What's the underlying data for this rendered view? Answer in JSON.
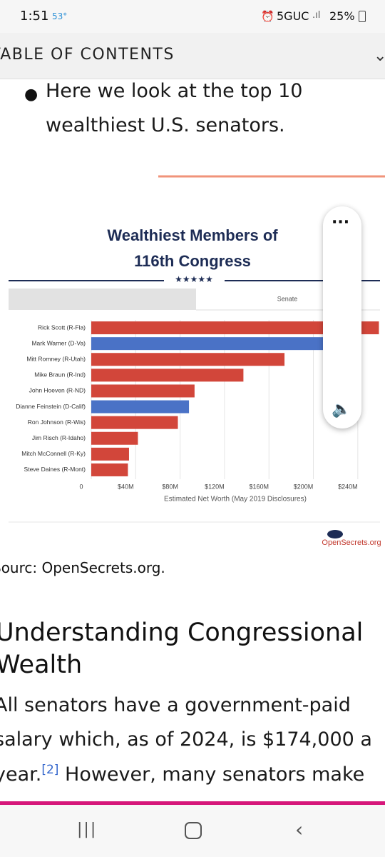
{
  "status_bar": {
    "time": "1:51",
    "temperature": "53°",
    "network": "5GUC",
    "battery": "25%"
  },
  "toc": {
    "label": "TABLE OF CONTENTS"
  },
  "bullet": {
    "lines": [
      "Here we look at the top 10",
      "wealthiest U.S. senators."
    ]
  },
  "chart": {
    "type": "bar",
    "orientation": "horizontal",
    "title_lines": [
      "Wealthiest Members of",
      "116th Congress"
    ],
    "stars": "★★★★★",
    "tab": "Senate",
    "categories": [
      "Rick Scott (R-Fla)",
      "Mark Warner (D-Va)",
      "Mitt Romney (R-Utah)",
      "Mike Braun (R-Ind)",
      "John Hoeven (R-ND)",
      "Dianne Feinstein (D-Calif)",
      "Ron Johnson (R-Wis)",
      "Jim Risch (R-Idaho)",
      "Mitch McConnell (R-Ky)",
      "Steve Daines (R-Mont)"
    ],
    "values": [
      259,
      214,
      174,
      137,
      93,
      88,
      78,
      42,
      34,
      33
    ],
    "colors": [
      "#d2463a",
      "#4a72c6",
      "#d2463a",
      "#d2463a",
      "#d2463a",
      "#4a72c6",
      "#d2463a",
      "#d2463a",
      "#d2463a",
      "#d2463a"
    ],
    "xlim": [
      0,
      260
    ],
    "xticks": [
      0,
      {
        "value": 40,
        "label": "$40M"
      },
      {
        "value": 80,
        "label": "$80M"
      },
      {
        "value": 120,
        "label": "$120M"
      },
      {
        "value": 160,
        "label": "$160M"
      },
      {
        "value": 200,
        "label": "$200M"
      },
      {
        "value": 240,
        "label": "$240M"
      }
    ],
    "grid": true,
    "xlabel": "Estimated Net Worth (May 2019 Disclosures)",
    "logo": "OpenSecrets.org"
  },
  "source": "Sourc: OpenSecrets.org.",
  "section": {
    "heading_lines": [
      "Understanding Congressional",
      "Wealth"
    ],
    "paragraph_lines": [
      "All senators have a government-paid",
      "salary which, as of 2024, is $174,000 a",
      "year."
    ],
    "citation": "[2]",
    "paragraph_tail": "However, many senators make"
  }
}
